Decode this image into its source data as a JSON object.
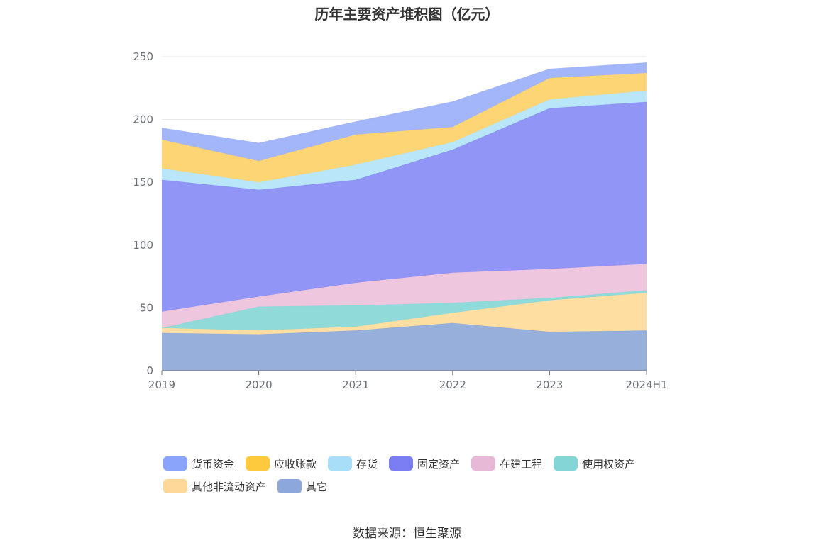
{
  "title": "历年主要资产堆积图（亿元）",
  "source": "数据来源：恒生聚源",
  "chart_data": {
    "type": "area",
    "stacked": true,
    "title": "历年主要资产堆积图（亿元）",
    "categories": [
      "2019",
      "2020",
      "2021",
      "2022",
      "2023",
      "2024H1"
    ],
    "ylim": [
      0,
      250
    ],
    "yticks": [
      0,
      50,
      100,
      150,
      200,
      250
    ],
    "grid": true,
    "legend_position": "bottom",
    "series": [
      {
        "name": "其它",
        "color": "#91acd9",
        "values": [
          30,
          29,
          32,
          38,
          31,
          32
        ]
      },
      {
        "name": "其他非流动资产",
        "color": "#fedc9c",
        "values": [
          4,
          3,
          3,
          8,
          25,
          30
        ]
      },
      {
        "name": "使用权资产",
        "color": "#8ad8d8",
        "values": [
          0,
          19,
          17,
          8,
          2,
          2
        ]
      },
      {
        "name": "在建工程",
        "color": "#edc3dc",
        "values": [
          13,
          8,
          18,
          24,
          23,
          21
        ]
      },
      {
        "name": "固定资产",
        "color": "#8a8ff5",
        "values": [
          105,
          85,
          82,
          98,
          128,
          129
        ]
      },
      {
        "name": "存货",
        "color": "#b5e6f9",
        "values": [
          9,
          6,
          12,
          6,
          7,
          9
        ]
      },
      {
        "name": "应收账款",
        "color": "#fed36e",
        "values": [
          23,
          17,
          24,
          12,
          17,
          14
        ]
      },
      {
        "name": "货币资金",
        "color": "#9fb2fa",
        "values": [
          9,
          14,
          10,
          20,
          7,
          8
        ]
      }
    ]
  },
  "legend": [
    {
      "label": "货币资金",
      "color": "#8aa3fb"
    },
    {
      "label": "应收账款",
      "color": "#fdc93d"
    },
    {
      "label": "存货",
      "color": "#a8def8"
    },
    {
      "label": "固定资产",
      "color": "#7a7ef2"
    },
    {
      "label": "在建工程",
      "color": "#e8b9d6"
    },
    {
      "label": "使用权资产",
      "color": "#83d5d6"
    },
    {
      "label": "其他非流动资产",
      "color": "#fdd899"
    },
    {
      "label": "其它",
      "color": "#8ba7dc"
    }
  ]
}
